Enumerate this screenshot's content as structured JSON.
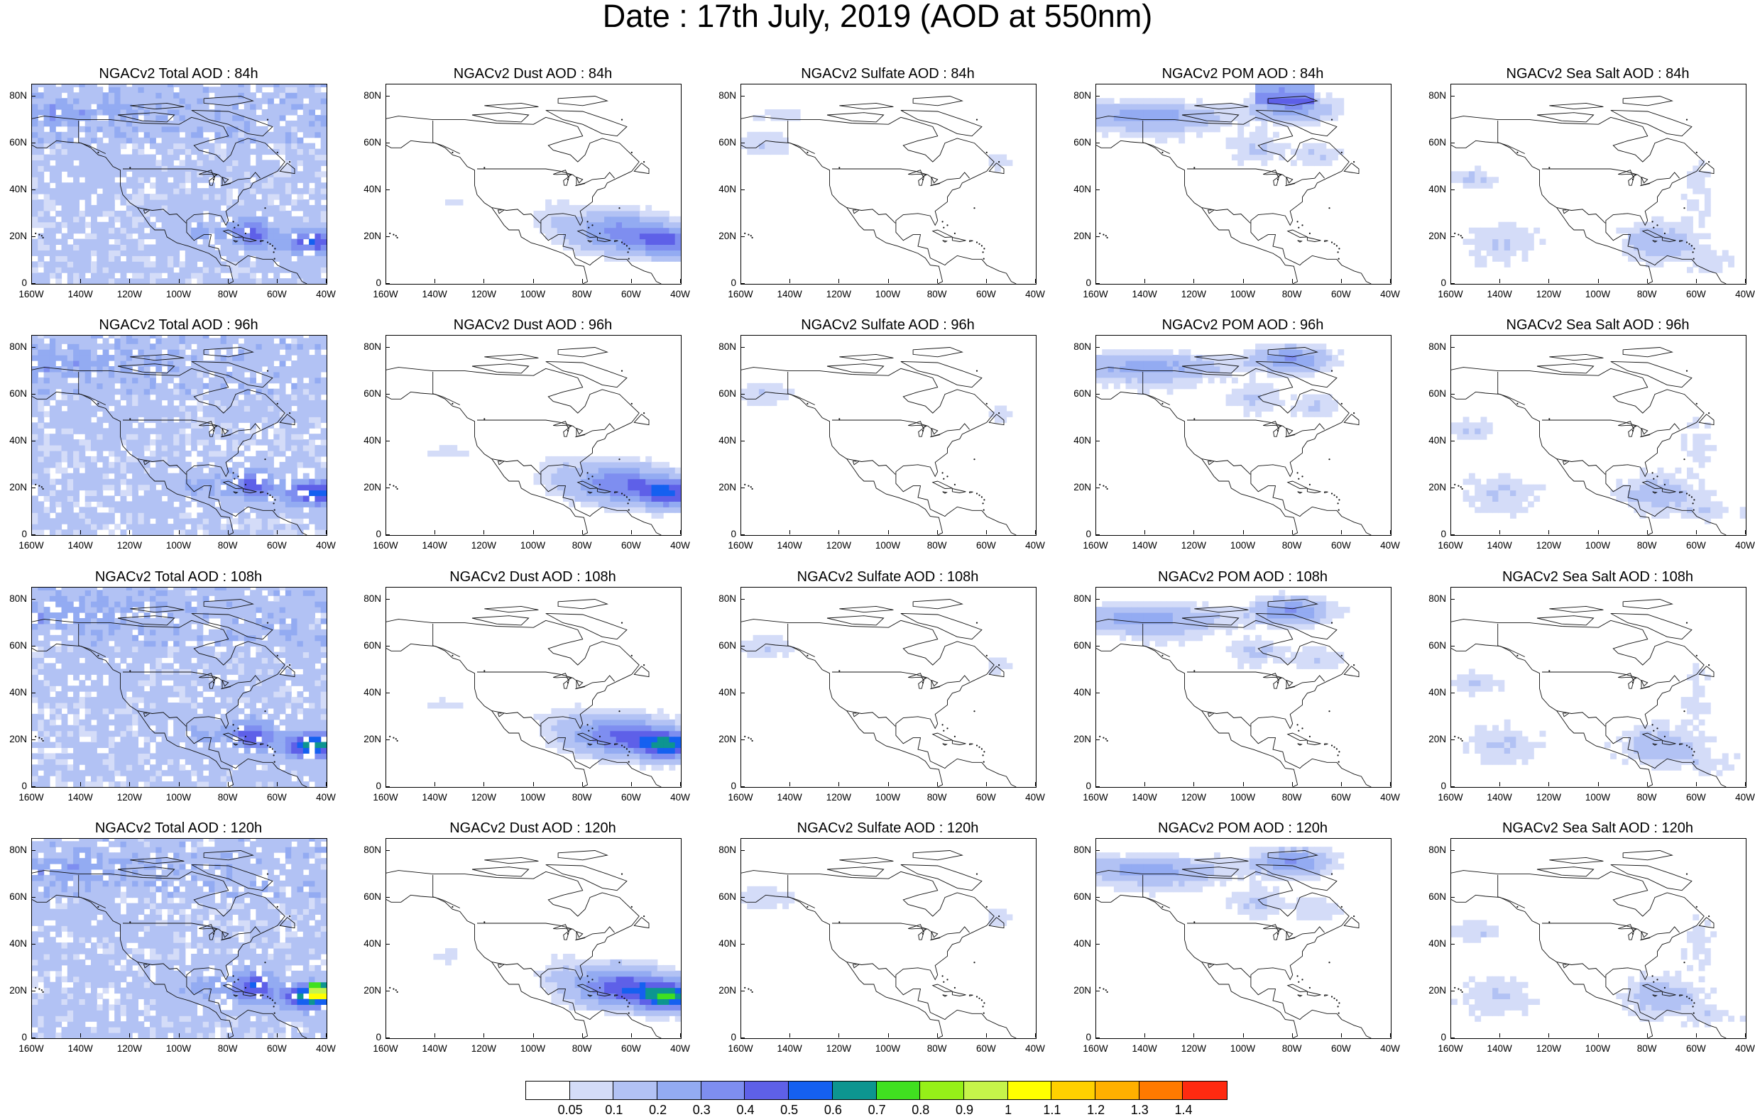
{
  "title": "Date : 17th July, 2019 (AOD at 550nm)",
  "x_ticks": [
    "160W",
    "140W",
    "120W",
    "100W",
    "80W",
    "60W",
    "40W"
  ],
  "y_ticks": [
    "80N",
    "60N",
    "40N",
    "20N",
    "0"
  ],
  "colorbar": {
    "colors": [
      "#ffffff",
      "#d4dcf8",
      "#b2c2f4",
      "#93abf2",
      "#7e8ef0",
      "#5e60e8",
      "#1560f0",
      "#0d9590",
      "#40e020",
      "#96f018",
      "#c6f44a",
      "#ffff00",
      "#ffd000",
      "#ffb000",
      "#ff7a00",
      "#ff2a10"
    ],
    "labels": [
      "0.05",
      "0.1",
      "0.2",
      "0.3",
      "0.4",
      "0.5",
      "0.6",
      "0.7",
      "0.8",
      "0.9",
      "1",
      "1.1",
      "1.2",
      "1.3",
      "1.4"
    ]
  },
  "panels": [
    {
      "title": "NGACv2 Total AOD : 84h",
      "variable": "total",
      "lead": "84h"
    },
    {
      "title": "NGACv2 Dust AOD : 84h",
      "variable": "dust",
      "lead": "84h"
    },
    {
      "title": "NGACv2 Sulfate AOD : 84h",
      "variable": "sulfate",
      "lead": "84h"
    },
    {
      "title": "NGACv2 POM AOD : 84h",
      "variable": "pom",
      "lead": "84h"
    },
    {
      "title": "NGACv2 Sea Salt AOD : 84h",
      "variable": "seasalt",
      "lead": "84h"
    },
    {
      "title": "NGACv2 Total AOD : 96h",
      "variable": "total",
      "lead": "96h"
    },
    {
      "title": "NGACv2 Dust AOD : 96h",
      "variable": "dust",
      "lead": "96h"
    },
    {
      "title": "NGACv2 Sulfate AOD : 96h",
      "variable": "sulfate",
      "lead": "96h"
    },
    {
      "title": "NGACv2 POM AOD : 96h",
      "variable": "pom",
      "lead": "96h"
    },
    {
      "title": "NGACv2 Sea Salt AOD : 96h",
      "variable": "seasalt",
      "lead": "96h"
    },
    {
      "title": "NGACv2 Total AOD : 108h",
      "variable": "total",
      "lead": "108h"
    },
    {
      "title": "NGACv2 Dust AOD : 108h",
      "variable": "dust",
      "lead": "108h"
    },
    {
      "title": "NGACv2 Sulfate AOD : 108h",
      "variable": "sulfate",
      "lead": "108h"
    },
    {
      "title": "NGACv2 POM AOD : 108h",
      "variable": "pom",
      "lead": "108h"
    },
    {
      "title": "NGACv2 Sea Salt AOD : 108h",
      "variable": "seasalt",
      "lead": "108h"
    },
    {
      "title": "NGACv2 Total AOD : 120h",
      "variable": "total",
      "lead": "120h"
    },
    {
      "title": "NGACv2 Dust AOD : 120h",
      "variable": "dust",
      "lead": "120h"
    },
    {
      "title": "NGACv2 Sulfate AOD : 120h",
      "variable": "sulfate",
      "lead": "120h"
    },
    {
      "title": "NGACv2 POM AOD : 120h",
      "variable": "pom",
      "lead": "120h"
    },
    {
      "title": "NGACv2 Sea Salt  AOD : 120h",
      "variable": "seasalt",
      "lead": "120h"
    }
  ]
}
